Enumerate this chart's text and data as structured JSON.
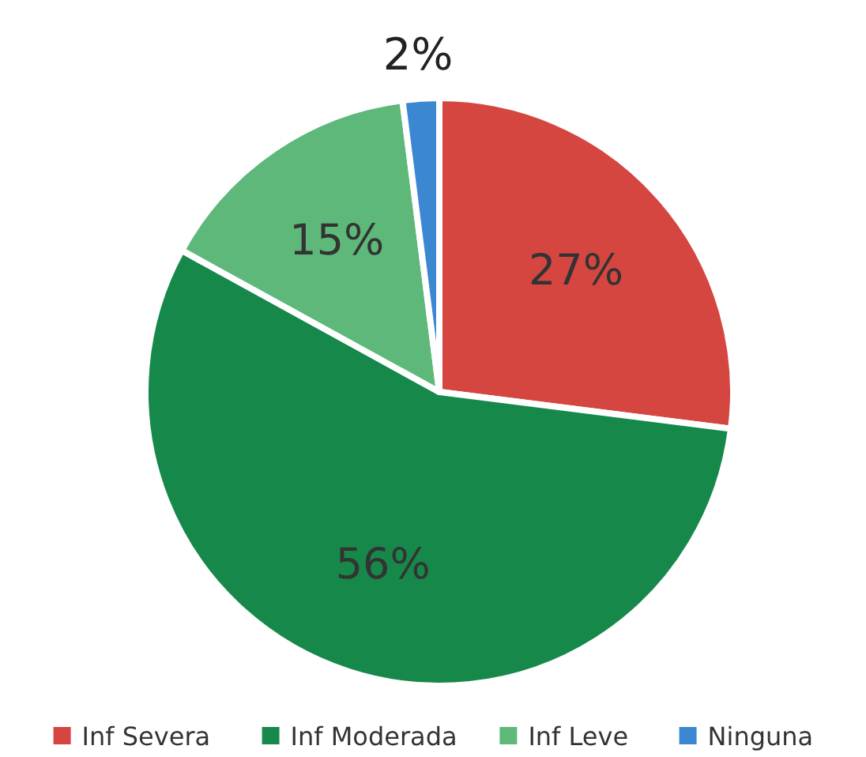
{
  "chart_data": {
    "type": "pie",
    "categories": [
      "Inf Severa",
      "Inf Moderada",
      "Inf Leve",
      "Ninguna"
    ],
    "values": [
      27,
      56,
      15,
      2
    ],
    "colors": [
      "#d4463f",
      "#16894a",
      "#5db87a",
      "#3c87d2"
    ],
    "value_labels": [
      "27%",
      "56%",
      "15%",
      "2%"
    ],
    "legend": "bottom"
  }
}
